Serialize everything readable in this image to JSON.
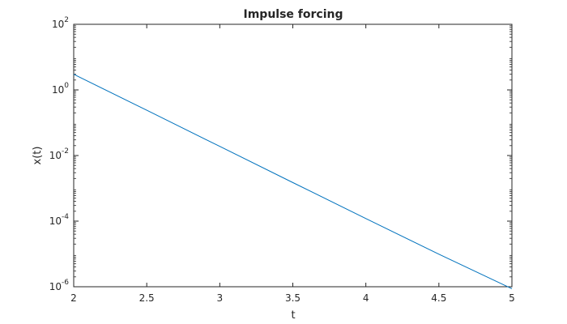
{
  "chart_data": {
    "type": "line",
    "title": "Impulse forcing",
    "xlabel": "t",
    "ylabel": "x(t)",
    "xlim": [
      2,
      5
    ],
    "ylim": [
      1e-06,
      100
    ],
    "yscale": "log",
    "grid": false,
    "box": true,
    "x_ticks": [
      "2",
      "2.5",
      "3",
      "3.5",
      "4",
      "4.5",
      "5"
    ],
    "y_ticks": [
      {
        "base": "10",
        "exp": "-6"
      },
      {
        "base": "10",
        "exp": "-4"
      },
      {
        "base": "10",
        "exp": "-2"
      },
      {
        "base": "10",
        "exp": "0"
      },
      {
        "base": "10",
        "exp": "2"
      }
    ],
    "series": [
      {
        "color": "#0072BD",
        "x": [
          2,
          2.5,
          3,
          3.5,
          4,
          4.5,
          5
        ],
        "y": [
          3.0,
          0.24,
          0.019,
          0.0015,
          0.00012,
          9.8e-06,
          8.7e-07
        ]
      }
    ]
  }
}
